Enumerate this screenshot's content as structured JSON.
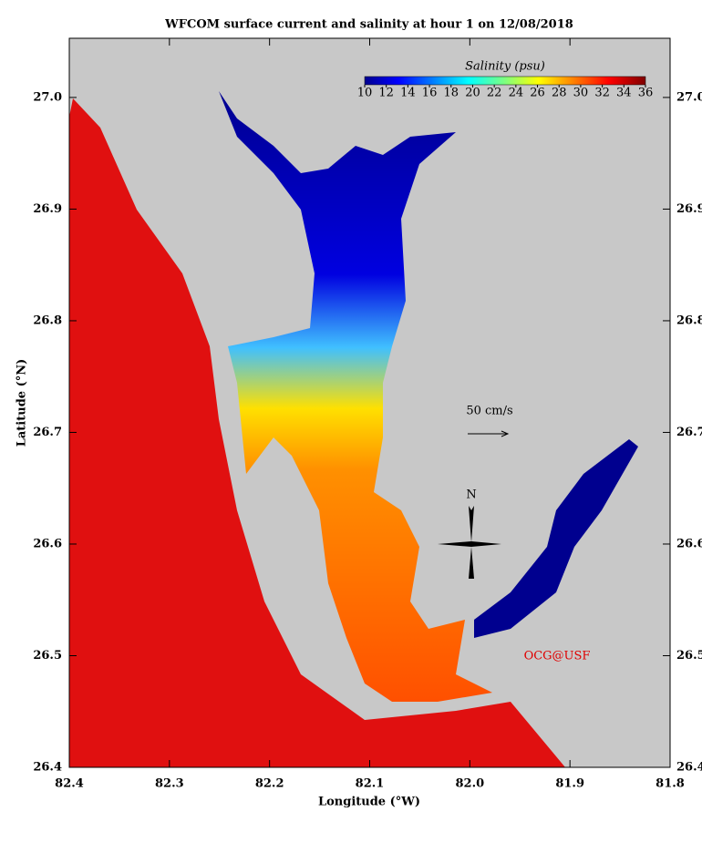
{
  "map": {
    "title": "WFCOM surface current and salinity at hour 1 on 12/08/2018",
    "xlabel": "Longitude (°W)",
    "ylabel": "Latitude (°N)",
    "xlim": [
      82.4,
      81.8
    ],
    "ylim": [
      26.4,
      27.053
    ],
    "xticks": [
      82.4,
      82.3,
      82.2,
      82.1,
      {
        "value": 82,
        "label": "82.0"
      },
      81.9,
      81.8
    ],
    "yticks": [
      {
        "value": 27,
        "label": "27.0"
      },
      26.9,
      26.8,
      26.7,
      26.6,
      26.5,
      26.4
    ],
    "colorbar": {
      "label": "Salinity (psu)",
      "lim": [
        10,
        36
      ],
      "ticks": [
        10,
        12,
        14,
        16,
        18,
        20,
        22,
        24,
        26,
        28,
        30,
        32,
        34,
        36
      ]
    },
    "scale_label": "50 cm/s",
    "north_label": "N",
    "credit": "OCG@USF"
  }
}
